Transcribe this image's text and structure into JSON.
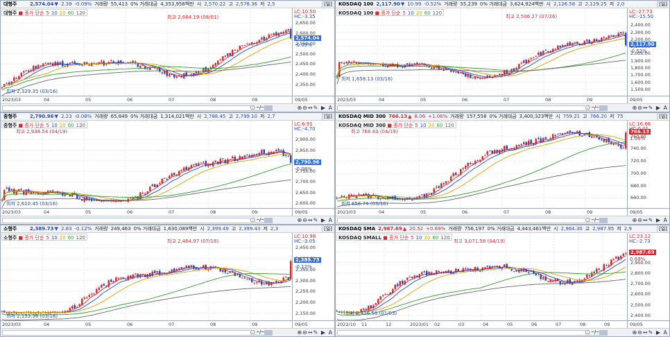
{
  "panels": [
    {
      "id": "p1",
      "name": "대형주",
      "price": "2,574.04",
      "price_dir": "down",
      "change": "2.39",
      "pct": "-0.09%",
      "vol_label": "거래량",
      "volume": "55,413",
      "amt_label": "0% 거래대금",
      "amount": "4,353,956백만",
      "open_label": "시",
      "open": "2,570.22",
      "high_label": "고",
      "high": "2,578.36",
      "low_label": "저",
      "low": "2,5",
      "chart_button": "[일]",
      "legend": {
        "symbol": "대형주",
        "ma_label": "종가 단순",
        "ma5": "5",
        "ma10": "10",
        "ma20": "20",
        "ma60": "60",
        "ma120": "120"
      },
      "high_note": "최고 2,664.19 (08/01)",
      "low_note": "최저 2,329.35 (03/16)",
      "lc": "LC:10.50",
      "hc": "HC:-3.35",
      "cur_box": "2,574.04",
      "cur_chg": "-0.09%",
      "y_ticks": [
        "2,650.00",
        "2,600.00",
        "2,550.00",
        "2,500.00",
        "2,450.00",
        "2,400.00",
        "2,350.00"
      ],
      "x_labels": [
        "2023/03",
        "04",
        "05",
        "06",
        "07",
        "08",
        "09"
      ],
      "x_right": "09/05",
      "chart_data": {
        "type": "candlestick",
        "ylim": [
          2310,
          2680
        ],
        "start": 2335,
        "end": 2574.04,
        "series_high": 2664.19,
        "series_low": 2329.35
      }
    },
    {
      "id": "p2",
      "name": "KOSDAQ 100",
      "price": "2,117.90",
      "price_dir": "down",
      "change": "10.99",
      "pct": "-0.52%",
      "vol_label": "거래량",
      "volume": "55,239",
      "amt_label": "0% 거래대금",
      "amount": "3,624,924백만",
      "open_label": "시",
      "open": "2,126.58",
      "high_label": "고",
      "high": "2,129.25",
      "low_label": "저",
      "low": "2,0",
      "chart_button": "[일]",
      "legend": {
        "symbol": "KOSDAQ 100",
        "ma_label": "종가 단순",
        "ma5": "5",
        "ma10": "10",
        "ma20": "20",
        "ma60": "60",
        "ma120": "120"
      },
      "high_note": "최고 2,506.27 (07/26)",
      "low_note": "최저 1,658.13 (03/16)",
      "lc": "LC:-27.73",
      "hc": "HC:-15.50",
      "cur_box": "2,117.90",
      "cur_chg": "-0.52%",
      "y_ticks": [
        "2,400.00",
        "2,300.00",
        "2,200.00",
        "2,100.00",
        "2,000.00",
        "1,900.00",
        "1,800.00",
        "1,700.00",
        "1,600.00",
        "1,500.00"
      ],
      "x_labels": [
        "2023/03",
        "04",
        "05",
        "06",
        "07",
        "08",
        "09"
      ],
      "x_right": "09/05",
      "chart_data": {
        "type": "candlestick",
        "ylim": [
          1450,
          2520
        ],
        "start": 1665,
        "end": 2117.9,
        "series_high": 2506.27,
        "series_low": 1658.13
      }
    },
    {
      "id": "p3",
      "name": "중형주",
      "price": "2,790.96",
      "price_dir": "down",
      "change": "2.23",
      "pct": "-0.08%",
      "vol_label": "거래량",
      "volume": "65,849",
      "amt_label": "0% 거래대금",
      "amount": "1,314,021백만",
      "open_label": "시",
      "open": "2,788.45",
      "high_label": "고",
      "high": "2,799.10",
      "low_label": "저",
      "low": "2,7",
      "chart_button": "[일]",
      "legend": {
        "symbol": "중형주",
        "ma_label": "종가 단순",
        "ma5": "5",
        "ma10": "10",
        "ma20": "20",
        "ma60": "60",
        "ma120": "120"
      },
      "high_note": "최고 2,938.54 (04/19)",
      "low_note": "최저 2,610.45 (03/16)",
      "lc": "LC:6.91",
      "hc": "HC:-4.70",
      "cur_box": "2,790.96",
      "cur_chg": "-0.08%",
      "y_ticks": [
        "2,900.00",
        "2,850.00",
        "2,800.00",
        "2,750.00",
        "2,700.00",
        "2,650.00",
        "2,600.00"
      ],
      "x_labels": [
        "2023/03",
        "04",
        "05",
        "06",
        "07",
        "08",
        "09"
      ],
      "x_right": "09/05",
      "chart_data": {
        "type": "candlestick",
        "ylim": [
          2590,
          2950
        ],
        "start": 2615,
        "end": 2790.96,
        "series_high": 2938.54,
        "series_low": 2610.45
      }
    },
    {
      "id": "p4",
      "name": "KOSDAQ MID 300",
      "price": "766.13",
      "price_dir": "up",
      "change": "8.06",
      "pct": "+1.06%",
      "vol_label": "거래량",
      "volume": "157,558",
      "amt_label": "0% 거래대금",
      "amount": "3,400,323백만",
      "open_label": "시",
      "open": "759.21",
      "high_label": "고",
      "high": "766.20",
      "low_label": "저",
      "low": "75",
      "chart_button": "[일]",
      "legend": {
        "symbol": "KOSDAQ MID 300",
        "ma_label": "종가 단순",
        "ma5": "5",
        "ma10": "10",
        "ma20": "20",
        "ma60": "60",
        "ma120": "120"
      },
      "high_note": "최고 768.83 (04/19)",
      "low_note": "최저 656.74 (03/16)",
      "lc": "LC:16.66",
      "hc": "HC:0.01",
      "cur_box": "766.13",
      "cur_chg": "1.06%",
      "y_ticks": [
        "760.00",
        "740.00",
        "720.00",
        "700.00",
        "680.00",
        "660.00"
      ],
      "x_labels": [
        "2023/03",
        "04",
        "05",
        "06",
        "07",
        "08",
        "09"
      ],
      "x_right": "09/05",
      "chart_data": {
        "type": "candlestick",
        "ylim": [
          648,
          772
        ],
        "start": 660,
        "end": 766.13,
        "series_high": 768.83,
        "series_low": 656.74
      }
    },
    {
      "id": "p5",
      "name": "소형주",
      "price": "2,389.73",
      "price_dir": "down",
      "change": "2.83",
      "pct": "-0.12%",
      "vol_label": "거래량",
      "volume": "249,463",
      "amt_label": "0% 거래대금",
      "amount": "1,630,089백만",
      "open_label": "시",
      "open": "2,399.49",
      "high_label": "고",
      "high": "2,399.43",
      "low_label": "저",
      "low": "2,3",
      "chart_button": "[일]",
      "legend": {
        "symbol": "소형주",
        "ma_label": "종가 단순",
        "ma5": "5",
        "ma10": "10",
        "ma20": "20",
        "ma60": "60",
        "ma120": "120"
      },
      "high_note": "최고 2,464.97 (07/18)",
      "low_note": "최저 2,153.36 (03/16)",
      "lc": "LC:10.98",
      "hc": "HC:-3.05",
      "cur_box": "2,389.73",
      "cur_chg": "-0.12%",
      "y_ticks": [
        "2,450.00",
        "2,400.00",
        "2,350.00",
        "2,300.00",
        "2,250.00",
        "2,200.00",
        "2,150.00"
      ],
      "x_labels": [
        "2023/03",
        "04",
        "05",
        "06",
        "07",
        "08",
        "09"
      ],
      "x_right": "09/05",
      "chart_data": {
        "type": "candlestick",
        "ylim": [
          2130,
          2480
        ],
        "start": 2160,
        "end": 2389.73,
        "series_high": 2464.97,
        "series_low": 2153.36
      }
    },
    {
      "id": "p6",
      "name": "KOSDAQ SMA",
      "price": "2,987.69",
      "price_dir": "up",
      "change": "20.52",
      "pct": "+0.69%",
      "vol_label": "거래량",
      "volume": "756,197",
      "amt_label": "0% 거래대금",
      "amount": "4,443,461백만",
      "open_label": "시",
      "open": "2,964.30",
      "high_label": "고",
      "high": "2,987.95",
      "low_label": "저",
      "low": "2,9",
      "chart_button": "[일]",
      "legend": {
        "symbol": "KOSDAQ SMALL",
        "ma_label": "종가 단순",
        "ma5": "5",
        "ma10": "10",
        "ma20": "20",
        "ma60": "60",
        "ma120": "120"
      },
      "high_note": "최고 3,071.58 (04/19)",
      "low_note": "최저 2,426.56 (01/03)",
      "lc": "LC:23.12",
      "hc": "HC:-2.73",
      "cur_box": "2,987.69",
      "cur_chg": "0.69%",
      "y_ticks": [
        "3,000.00",
        "2,900.00",
        "2,800.00",
        "2,700.00",
        "2,600.00",
        "2,500.00",
        "2,400.00"
      ],
      "x_labels": [
        "2022/10",
        "11",
        "12",
        "2023/01",
        "02",
        "03",
        "04",
        "05",
        "06",
        "07",
        "08",
        "09"
      ],
      "x_right": "09/05",
      "chart_data": {
        "type": "candlestick",
        "ylim": [
          2380,
          3100
        ],
        "start": 2520,
        "end": 2987.69,
        "series_high": 3071.58,
        "series_low": 2426.56
      }
    }
  ],
  "toolbar": {
    "tools": "⊕⊖↔✎ ▶ A",
    "range_mark": "▢ ─/─"
  },
  "colors": {
    "up": "#d8262b",
    "down": "#1b49c6",
    "ma5": "#d8262b",
    "ma10": "#1b49c6",
    "ma20": "#d99f00",
    "ma60": "#2a9d2a",
    "ma120": "#666666"
  }
}
